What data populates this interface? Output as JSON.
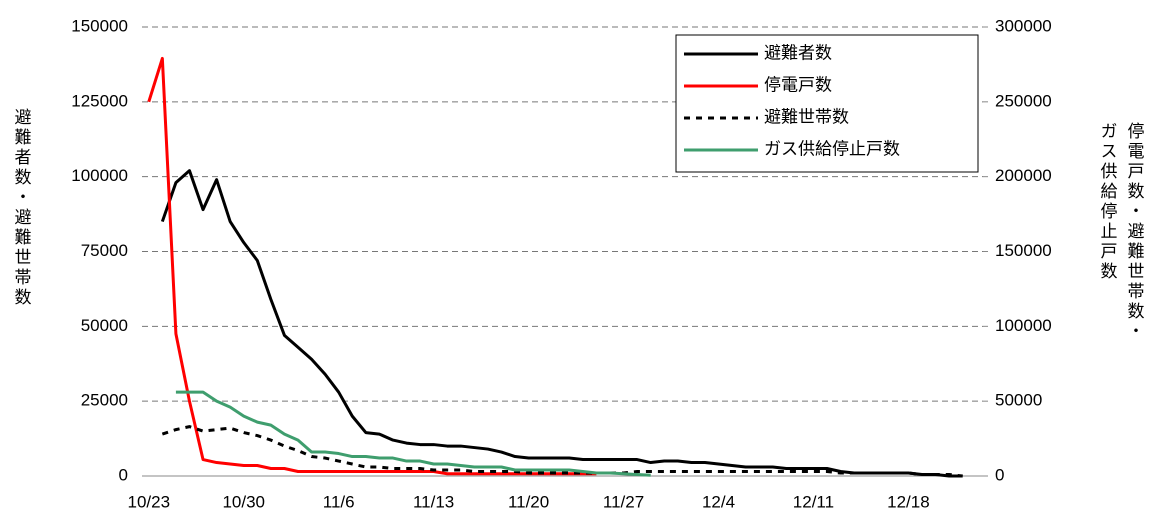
{
  "chart_data": {
    "type": "line",
    "ylabel": "避難者数・避難世帯数",
    "y2label": [
      "停電戸数・避難世帯数・",
      "ガス供給停止戸数"
    ],
    "ylim": [
      0,
      150000
    ],
    "yticks": [
      0,
      25000,
      50000,
      75000,
      100000,
      125000,
      150000
    ],
    "y2lim": [
      0,
      300000
    ],
    "y2ticks": [
      0,
      50000,
      100000,
      150000,
      200000,
      250000,
      300000
    ],
    "grid": true,
    "legend": "upper right",
    "categories": [
      "10/23",
      null,
      null,
      null,
      null,
      null,
      null,
      "10/30",
      null,
      null,
      null,
      null,
      null,
      null,
      "11/6",
      null,
      null,
      null,
      null,
      null,
      null,
      "11/13",
      null,
      null,
      null,
      null,
      null,
      null,
      "11/20",
      null,
      null,
      null,
      null,
      null,
      null,
      "11/27",
      null,
      null,
      null,
      null,
      null,
      null,
      "12/4",
      null,
      null,
      null,
      null,
      null,
      null,
      "12/11",
      null,
      null,
      null,
      null,
      null,
      null,
      "12/18",
      null,
      null,
      null,
      null,
      null
    ],
    "series": [
      {
        "name": "避難者数",
        "color": "#000000",
        "style": "solid",
        "axis": "y",
        "values": [
          null,
          85000,
          98000,
          102000,
          89000,
          99000,
          85000,
          78000,
          72000,
          59000,
          47000,
          43000,
          39000,
          34000,
          28000,
          20000,
          14500,
          14000,
          12000,
          11000,
          10500,
          10500,
          10000,
          10000,
          9500,
          9000,
          8000,
          6500,
          6000,
          6000,
          6000,
          6000,
          5500,
          5500,
          5500,
          5500,
          5500,
          4500,
          5000,
          5000,
          4500,
          4500,
          4000,
          3500,
          3000,
          3000,
          3000,
          2500,
          2500,
          2500,
          2500,
          1500,
          1000,
          1000,
          1000,
          1000,
          1000,
          500,
          500,
          0,
          0,
          null
        ]
      },
      {
        "name": "停電戸数",
        "color": "#ff0000",
        "style": "solid",
        "axis": "y2",
        "values": [
          250000,
          279000,
          95000,
          50000,
          11000,
          9000,
          8000,
          7000,
          7000,
          5000,
          5000,
          3000,
          3000,
          3000,
          3000,
          3000,
          3000,
          3000,
          3000,
          3000,
          3000,
          3000,
          1500,
          1500,
          1500,
          1500,
          1500,
          1500,
          1500,
          1500,
          1500,
          1500,
          1500,
          1500,
          null,
          null,
          null,
          null,
          null,
          null,
          null,
          null,
          null,
          null,
          null,
          null,
          null,
          null,
          null,
          null,
          null,
          null,
          null,
          null,
          null,
          null,
          null,
          null,
          null,
          null,
          null,
          null
        ]
      },
      {
        "name": "避難世帯数",
        "color": "#000000",
        "style": "dashed",
        "axis": "y",
        "values": [
          null,
          14000,
          15500,
          16500,
          15000,
          15500,
          16000,
          14500,
          13500,
          12000,
          10000,
          8500,
          6500,
          6000,
          5000,
          4000,
          3000,
          3000,
          2500,
          2500,
          2500,
          2000,
          2000,
          2000,
          1500,
          1500,
          1500,
          1500,
          1000,
          1000,
          1000,
          1000,
          1000,
          1000,
          1000,
          1000,
          1500,
          1500,
          1500,
          1500,
          1500,
          1500,
          1500,
          1500,
          1500,
          1500,
          1500,
          1500,
          1500,
          1500,
          1500,
          1000,
          1000,
          1000,
          1000,
          1000,
          1000,
          500,
          500,
          500,
          0,
          null
        ]
      },
      {
        "name": "ガス供給停止戸数",
        "color": "#3f9e6e",
        "style": "solid",
        "axis": "y2",
        "values": [
          null,
          null,
          56000,
          56000,
          56000,
          50000,
          46000,
          40000,
          36000,
          34000,
          28000,
          24000,
          16000,
          16000,
          15000,
          13000,
          13000,
          12000,
          12000,
          10000,
          10000,
          8000,
          8000,
          7000,
          6000,
          6000,
          6000,
          4000,
          4000,
          4000,
          4000,
          4000,
          3000,
          2000,
          2000,
          1500,
          1000,
          500,
          null,
          null,
          null,
          null,
          null,
          null,
          null,
          null,
          null,
          null,
          null,
          null,
          null,
          null,
          null,
          null,
          null,
          null,
          null,
          null,
          null,
          null,
          null,
          null
        ]
      }
    ]
  }
}
